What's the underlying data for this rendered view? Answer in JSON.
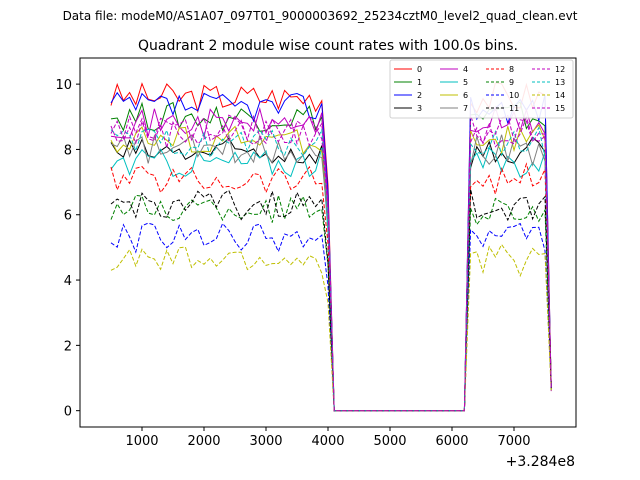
{
  "chart_data": {
    "type": "line",
    "suptitle": "Data file: modeM0/AS1A07_097T01_9000003692_25234cztM0_level2_quad_clean.evt",
    "title": "Quadrant 2 module wise count rates with 100.0s bins.",
    "xlabel": "",
    "ylabel": "",
    "x_offset_label": "+3.284e8",
    "xlim": [
      0,
      8000
    ],
    "ylim": [
      -0.5,
      10.8
    ],
    "xticks": [
      1000,
      2000,
      3000,
      4000,
      5000,
      6000,
      7000
    ],
    "xtick_labels": [
      "1000",
      "2000",
      "3000",
      "4000",
      "5000",
      "6000",
      "7000"
    ],
    "yticks": [
      0,
      2,
      4,
      6,
      8,
      10
    ],
    "ytick_labels": [
      "0",
      "2",
      "4",
      "6",
      "8",
      "10"
    ],
    "legend_position": "top-right",
    "segments": [
      {
        "x_start": 500,
        "x_end": 3900,
        "step": 100
      },
      {
        "x_start": 6300,
        "x_end": 7500,
        "step": 100
      }
    ],
    "gap_x": [
      4100,
      4200,
      4300,
      4400,
      4500,
      4600,
      4700,
      4800,
      4900,
      5000,
      5100,
      5200,
      5300,
      5400,
      5500,
      5600,
      5700,
      5800,
      5900,
      6000,
      6100,
      6200
    ],
    "drop_x": [
      4000,
      7600
    ],
    "series": [
      {
        "name": "0",
        "color": "#ff0000",
        "dash": "solid",
        "level": 9.6
      },
      {
        "name": "1",
        "color": "#008000",
        "dash": "solid",
        "level": 9.0
      },
      {
        "name": "2",
        "color": "#0000ff",
        "dash": "solid",
        "level": 9.3
      },
      {
        "name": "3",
        "color": "#000000",
        "dash": "solid",
        "level": 7.9
      },
      {
        "name": "4",
        "color": "#bf00bf",
        "dash": "solid",
        "level": 8.8
      },
      {
        "name": "5",
        "color": "#00bfbf",
        "dash": "solid",
        "level": 7.6
      },
      {
        "name": "6",
        "color": "#bfbf00",
        "dash": "solid",
        "level": 8.3
      },
      {
        "name": "7",
        "color": "#808080",
        "dash": "solid",
        "level": 8.0
      },
      {
        "name": "8",
        "color": "#ff0000",
        "dash": "dashed",
        "level": 7.1
      },
      {
        "name": "9",
        "color": "#008000",
        "dash": "dashed",
        "level": 6.2
      },
      {
        "name": "10",
        "color": "#0000ff",
        "dash": "dashed",
        "level": 5.3
      },
      {
        "name": "11",
        "color": "#000000",
        "dash": "dashed",
        "level": 6.3
      },
      {
        "name": "12",
        "color": "#bf00bf",
        "dash": "dashed",
        "level": 8.5
      },
      {
        "name": "13",
        "color": "#00bfbf",
        "dash": "dashed",
        "level": 8.2
      },
      {
        "name": "14",
        "color": "#bfbf00",
        "dash": "dashed",
        "level": 4.6
      },
      {
        "name": "15",
        "color": "#bf00bf",
        "dash": "dashed",
        "level": 8.6
      }
    ]
  }
}
